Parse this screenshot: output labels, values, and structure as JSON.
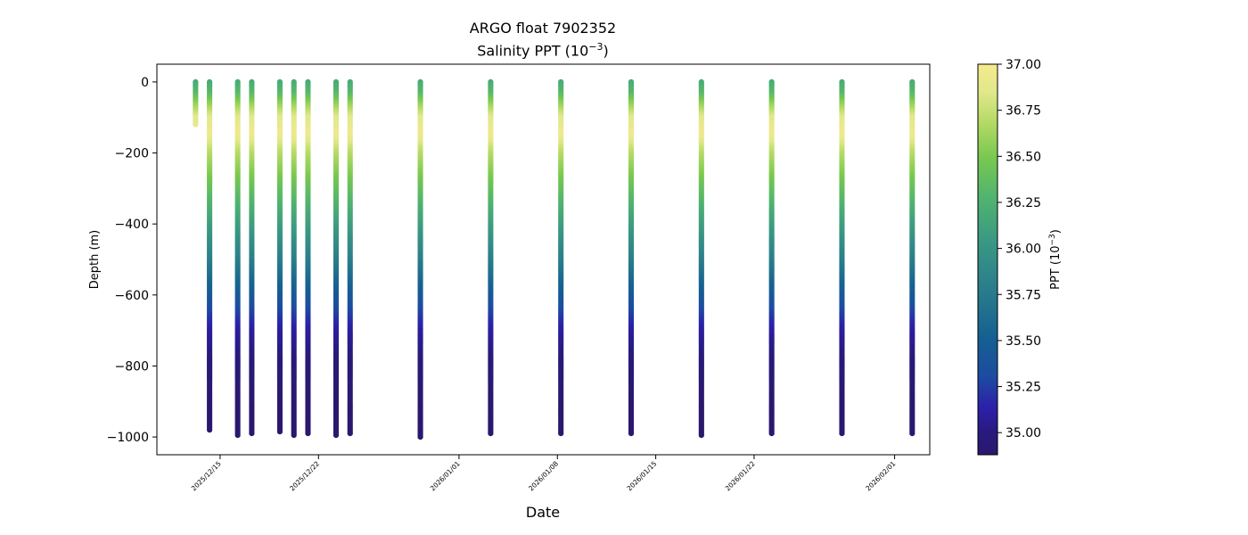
{
  "chart_data": {
    "type": "scatter",
    "title": "ARGO float 7902352",
    "subtitle_prefix": "Salinity PPT (10",
    "subtitle_exp": "−3",
    "subtitle_suffix": ")",
    "xlabel": "Date",
    "ylabel": "Depth (m)",
    "ylim": [
      -1050,
      50
    ],
    "xlim": [
      "2025-12-10T12:00",
      "2026-02-03T12:00"
    ],
    "yticks": [
      0,
      -200,
      -400,
      -600,
      -800,
      -1000
    ],
    "ytick_labels": [
      "0",
      "−200",
      "−400",
      "−600",
      "−800",
      "−1000"
    ],
    "xticks": [
      "2025-12-15",
      "2025-12-22",
      "2026-01-01",
      "2026-01-08",
      "2026-01-15",
      "2026-01-22",
      "2026-02-01"
    ],
    "xtick_labels": [
      "2025/12/15",
      "2025/12/22",
      "2026/01/01",
      "2026/01/08",
      "2026/01/15",
      "2026/01/22",
      "2026/02/01"
    ],
    "colorbar": {
      "label_prefix": "PPT (10",
      "label_exp": "−3",
      "label_suffix": ")",
      "range": [
        34.88,
        37.0
      ],
      "ticks": [
        35.0,
        35.25,
        35.5,
        35.75,
        36.0,
        36.25,
        36.5,
        36.75,
        37.0
      ],
      "tick_labels": [
        "35.00",
        "35.25",
        "35.50",
        "35.75",
        "36.00",
        "36.25",
        "36.50",
        "36.75",
        "37.00"
      ],
      "colormap": "haline"
    },
    "profiles": [
      {
        "date": "2025-12-13T06:00",
        "max_depth": 120
      },
      {
        "date": "2025-12-14T06:00",
        "max_depth": 980
      },
      {
        "date": "2025-12-16T06:00",
        "max_depth": 995
      },
      {
        "date": "2025-12-17T06:00",
        "max_depth": 990
      },
      {
        "date": "2025-12-19T06:00",
        "max_depth": 988
      },
      {
        "date": "2025-12-20T06:00",
        "max_depth": 995
      },
      {
        "date": "2025-12-21T06:00",
        "max_depth": 990
      },
      {
        "date": "2025-12-23T06:00",
        "max_depth": 995
      },
      {
        "date": "2025-12-24T06:00",
        "max_depth": 990
      },
      {
        "date": "2025-12-29T06:00",
        "max_depth": 1000
      },
      {
        "date": "2026-01-03T06:00",
        "max_depth": 990
      },
      {
        "date": "2026-01-08T06:00",
        "max_depth": 992
      },
      {
        "date": "2026-01-13T06:00",
        "max_depth": 990
      },
      {
        "date": "2026-01-18T06:00",
        "max_depth": 995
      },
      {
        "date": "2026-01-23T06:00",
        "max_depth": 990
      },
      {
        "date": "2026-01-28T06:00",
        "max_depth": 992
      },
      {
        "date": "2026-02-02T06:00",
        "max_depth": 990
      }
    ],
    "salinity_profile": [
      {
        "depth": 0,
        "value": 36.2
      },
      {
        "depth": 30,
        "value": 36.3
      },
      {
        "depth": 60,
        "value": 36.55
      },
      {
        "depth": 100,
        "value": 36.85
      },
      {
        "depth": 150,
        "value": 36.95
      },
      {
        "depth": 200,
        "value": 36.7
      },
      {
        "depth": 300,
        "value": 36.4
      },
      {
        "depth": 400,
        "value": 36.1
      },
      {
        "depth": 500,
        "value": 35.8
      },
      {
        "depth": 600,
        "value": 35.45
      },
      {
        "depth": 700,
        "value": 35.1
      },
      {
        "depth": 800,
        "value": 34.95
      },
      {
        "depth": 900,
        "value": 34.9
      },
      {
        "depth": 1000,
        "value": 34.89
      }
    ]
  }
}
